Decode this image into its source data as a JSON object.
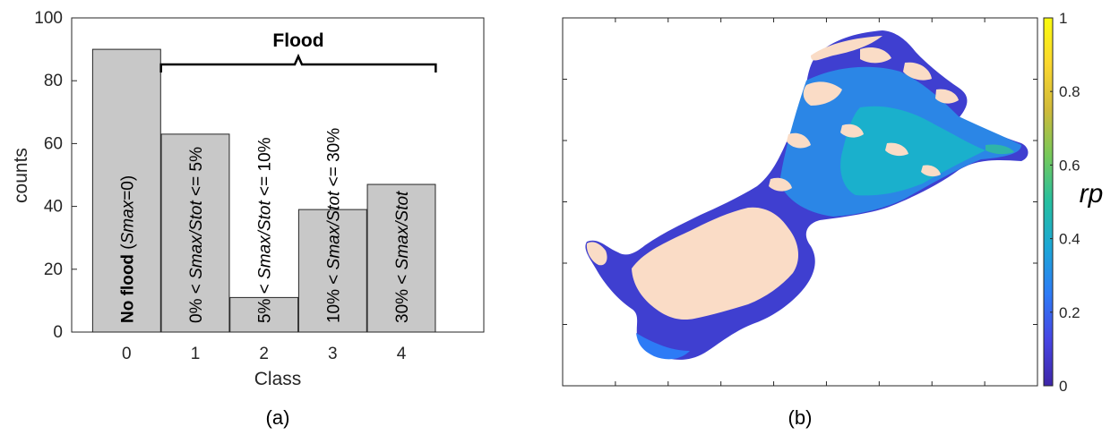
{
  "chart_data": [
    {
      "type": "bar",
      "panel_label": "(a)",
      "categories": [
        "0",
        "1",
        "2",
        "3",
        "4"
      ],
      "values": [
        90,
        63,
        11,
        39,
        47
      ],
      "xlabel": "Class",
      "ylabel": "counts",
      "ylim": [
        0,
        100
      ],
      "yticks": [
        "0",
        "20",
        "40",
        "60",
        "80",
        "100"
      ],
      "bar_color": "#c8c8c8",
      "bracket_label": "Flood",
      "bar_labels": [
        [
          {
            "t": "No flood",
            "b": true
          },
          {
            "t": " ("
          },
          {
            "t": "Smax",
            "i": true
          },
          {
            "t": "=0)"
          }
        ],
        [
          {
            "t": "0% < "
          },
          {
            "t": "Smax/Stot",
            "i": true
          },
          {
            "t": " <= 5%"
          }
        ],
        [
          {
            "t": "5% < "
          },
          {
            "t": "Smax/Stot",
            "i": true
          },
          {
            "t": " <= 10%"
          }
        ],
        [
          {
            "t": "10% < "
          },
          {
            "t": "Smax/Stot",
            "i": true
          },
          {
            "t": " <= 30%"
          }
        ],
        [
          {
            "t": "30% < "
          },
          {
            "t": "Smax/Stot",
            "i": true
          }
        ]
      ]
    },
    {
      "type": "heatmap",
      "panel_label": "(b)",
      "description_hidden": false,
      "colorbar": {
        "title": "rp",
        "range": [
          0,
          1
        ],
        "ticks": [
          "0",
          "0.2",
          "0.4",
          "0.6",
          "0.8",
          "1"
        ],
        "colormap": [
          "#3e26a8",
          "#4745e3",
          "#2d7bf6",
          "#1ca6d6",
          "#25bfa0",
          "#75c95a",
          "#d0ba3a",
          "#fbd72f",
          "#f9fb0e"
        ]
      },
      "land_color": "#fadcc6"
    }
  ]
}
